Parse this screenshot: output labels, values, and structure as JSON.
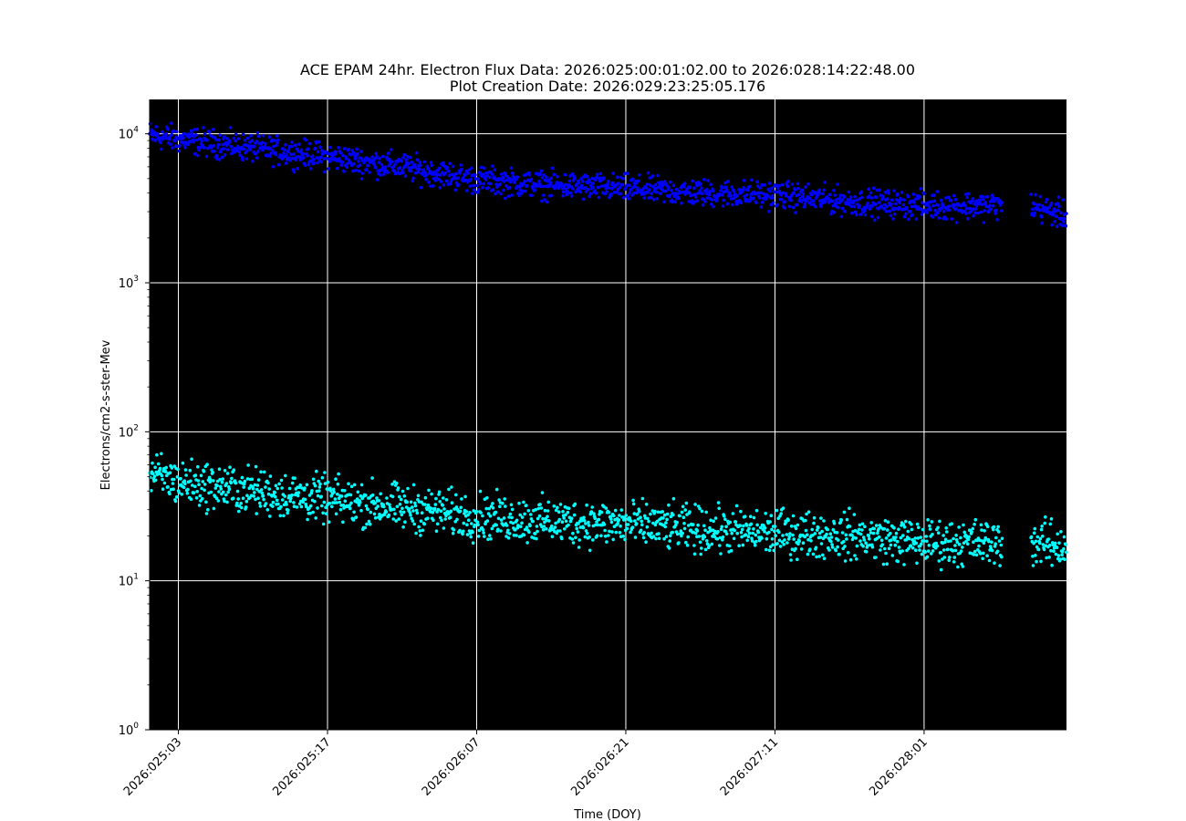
{
  "chart_data": {
    "type": "scatter",
    "title": "ACE EPAM 24hr. Electron Flux Data: 2026:025:00:01:02.00 to 2026:028:14:22:48.00",
    "subtitle": "Plot Creation Date: 2026:029:23:25:05.176",
    "xlabel": "Time (DOY)",
    "ylabel": "Electrons/cm2-s-ster-Mev",
    "yscale": "log",
    "ylim": [
      1,
      17000
    ],
    "xlim": [
      "2026:025:00:18",
      "2026:028:14:22"
    ],
    "background": "#000000",
    "grid": true,
    "grid_color": "#ffffff",
    "x_ticks": [
      "2026:025:03",
      "2026:025:17",
      "2026:026:07",
      "2026:026:21",
      "2026:027:11",
      "2026:028:01"
    ],
    "y_ticks": [
      {
        "base": "10",
        "exp": "0",
        "value": 1
      },
      {
        "base": "10",
        "exp": "1",
        "value": 10
      },
      {
        "base": "10",
        "exp": "2",
        "value": 100
      },
      {
        "base": "10",
        "exp": "3",
        "value": 1000
      },
      {
        "base": "10",
        "exp": "4",
        "value": 10000
      }
    ],
    "data_gap": [
      "2026:028:08:20",
      "2026:028:11:00"
    ],
    "series": [
      {
        "color": "#0000ff",
        "x": [
          "2026:025:00:18",
          "2026:025:03",
          "2026:025:10",
          "2026:025:17",
          "2026:026:00",
          "2026:026:07",
          "2026:026:14",
          "2026:026:21",
          "2026:027:04",
          "2026:027:11",
          "2026:027:18",
          "2026:028:01",
          "2026:028:08:20",
          "2026:028:11:00",
          "2026:028:14:22"
        ],
        "y": [
          9800,
          9200,
          8000,
          7000,
          6000,
          4900,
          4500,
          4300,
          4000,
          3900,
          3500,
          3300,
          3300,
          3300,
          2800
        ]
      },
      {
        "color": "#00ffff",
        "x": [
          "2026:025:00:18",
          "2026:025:03",
          "2026:025:10",
          "2026:025:17",
          "2026:026:00",
          "2026:026:07",
          "2026:026:14",
          "2026:026:21",
          "2026:027:04",
          "2026:027:11",
          "2026:027:18",
          "2026:028:01",
          "2026:028:08:20",
          "2026:028:11:00",
          "2026:028:14:22"
        ],
        "y": [
          52,
          46,
          40,
          35,
          31,
          27,
          25,
          24,
          22,
          21,
          20,
          18,
          18,
          18,
          17
        ]
      }
    ]
  }
}
